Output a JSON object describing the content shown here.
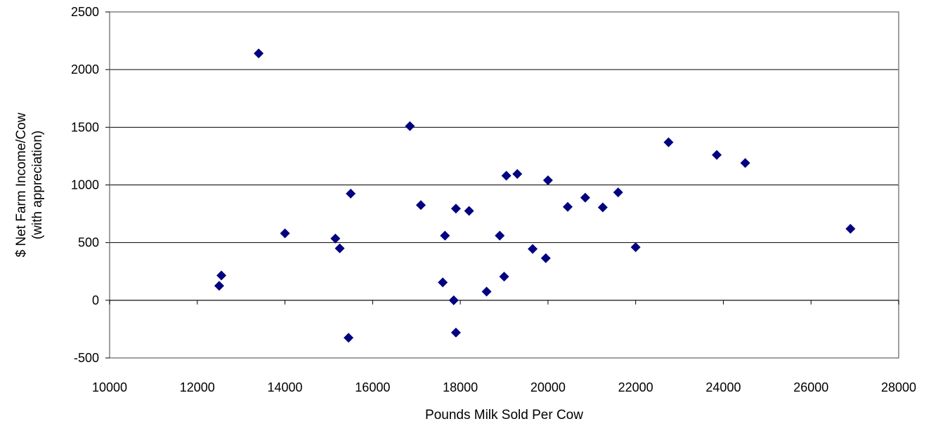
{
  "chart_data": {
    "type": "scatter",
    "title": "",
    "xlabel": "Pounds Milk Sold Per Cow",
    "ylabel_lines": [
      "$ Net Farm Income/Cow",
      "(with appreciation)"
    ],
    "xlim": [
      10000,
      28000
    ],
    "ylim": [
      -500,
      2500
    ],
    "x_ticks": [
      10000,
      12000,
      14000,
      16000,
      18000,
      20000,
      22000,
      24000,
      26000,
      28000
    ],
    "y_ticks": [
      -500,
      0,
      500,
      1000,
      1500,
      2000,
      2500
    ],
    "x_tick_labels": [
      "10000",
      "12000",
      "14000",
      "16000",
      "18000",
      "20000",
      "22000",
      "24000",
      "26000",
      "28000"
    ],
    "y_tick_labels": [
      "-500",
      "0",
      "500",
      "1000",
      "1500",
      "2000",
      "2500"
    ],
    "grid": "horizontal",
    "marker": "diamond",
    "marker_color": "#000080",
    "points": [
      {
        "x": 12500,
        "y": 125
      },
      {
        "x": 12550,
        "y": 215
      },
      {
        "x": 13400,
        "y": 2140
      },
      {
        "x": 14000,
        "y": 580
      },
      {
        "x": 15150,
        "y": 535
      },
      {
        "x": 15250,
        "y": 450
      },
      {
        "x": 15450,
        "y": -325
      },
      {
        "x": 15500,
        "y": 925
      },
      {
        "x": 16850,
        "y": 1510
      },
      {
        "x": 17100,
        "y": 825
      },
      {
        "x": 17600,
        "y": 155
      },
      {
        "x": 17650,
        "y": 560
      },
      {
        "x": 17850,
        "y": 0
      },
      {
        "x": 17900,
        "y": -280
      },
      {
        "x": 17900,
        "y": 795
      },
      {
        "x": 18200,
        "y": 775
      },
      {
        "x": 18600,
        "y": 75
      },
      {
        "x": 18900,
        "y": 560
      },
      {
        "x": 19000,
        "y": 205
      },
      {
        "x": 19050,
        "y": 1080
      },
      {
        "x": 19300,
        "y": 1095
      },
      {
        "x": 19650,
        "y": 445
      },
      {
        "x": 19950,
        "y": 365
      },
      {
        "x": 20000,
        "y": 1040
      },
      {
        "x": 20450,
        "y": 810
      },
      {
        "x": 20850,
        "y": 890
      },
      {
        "x": 21250,
        "y": 805
      },
      {
        "x": 21600,
        "y": 935
      },
      {
        "x": 22000,
        "y": 460
      },
      {
        "x": 22750,
        "y": 1370
      },
      {
        "x": 23850,
        "y": 1260
      },
      {
        "x": 24500,
        "y": 1190
      },
      {
        "x": 26900,
        "y": 620
      }
    ]
  }
}
